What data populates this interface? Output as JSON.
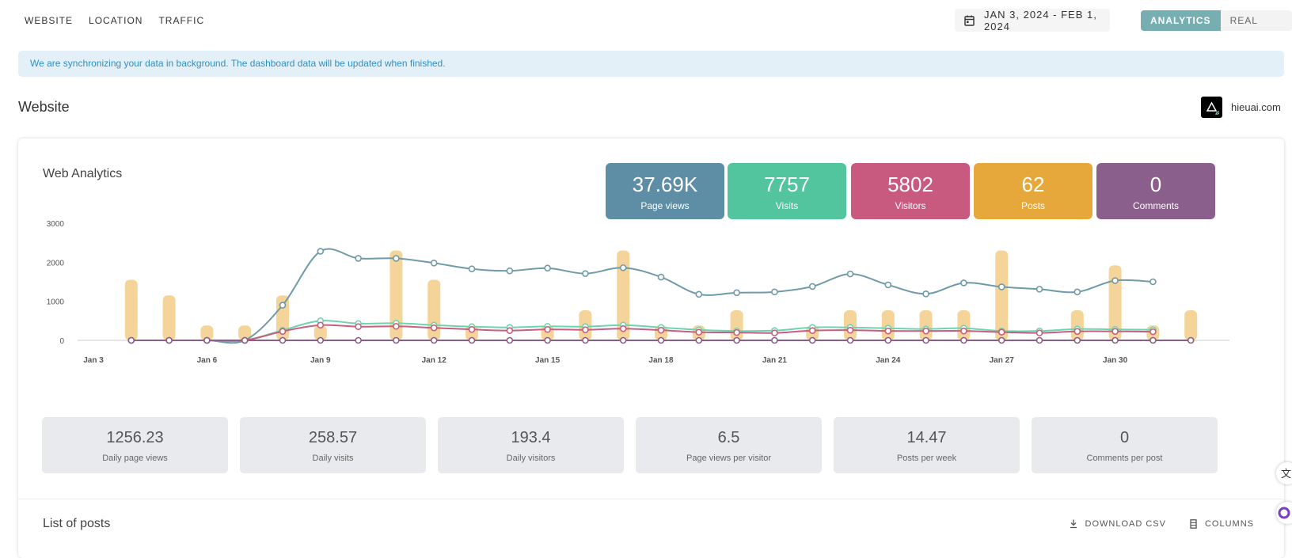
{
  "nav": {
    "tabs": [
      "WEBSITE",
      "LOCATION",
      "TRAFFIC"
    ]
  },
  "date_range": "JAN 3, 2024 - FEB 1, 2024",
  "modes": {
    "analytics": "ANALYTICS",
    "realtime": "REAL TIME"
  },
  "sync_banner": "We are synchronizing your data in background. The dashboard data will be updated when finished.",
  "section_title": "Website",
  "site": {
    "name": "hieuai.com"
  },
  "card_title": "Web Analytics",
  "kpis": [
    {
      "value": "37.69K",
      "label": "Page views",
      "color": "#5e8ea6"
    },
    {
      "value": "7757",
      "label": "Visits",
      "color": "#52c49e"
    },
    {
      "value": "5802",
      "label": "Visitors",
      "color": "#c95a7f"
    },
    {
      "value": "62",
      "label": "Posts",
      "color": "#e6a83a"
    },
    {
      "value": "0",
      "label": "Comments",
      "color": "#8a5f8b"
    }
  ],
  "stats": [
    {
      "value": "1256.23",
      "label": "Daily page views"
    },
    {
      "value": "258.57",
      "label": "Daily visits"
    },
    {
      "value": "193.4",
      "label": "Daily visitors"
    },
    {
      "value": "6.5",
      "label": "Page views per visitor"
    },
    {
      "value": "14.47",
      "label": "Posts per week"
    },
    {
      "value": "0",
      "label": "Comments per post"
    }
  ],
  "posts": {
    "title": "List of posts",
    "download": "DOWNLOAD CSV",
    "columns": "COLUMNS"
  },
  "chart_data": {
    "type": "bar",
    "x_tick_labels": [
      "Jan 3",
      "Jan 6",
      "Jan 9",
      "Jan 12",
      "Jan 15",
      "Jan 18",
      "Jan 21",
      "Jan 24",
      "Jan 27",
      "Jan 30"
    ],
    "y_ticks": [
      0,
      1000,
      2000,
      3000
    ],
    "ylim": [
      0,
      3000
    ],
    "grid": false,
    "x_start": 3,
    "bars": [
      {
        "x": 4,
        "value": 1550
      },
      {
        "x": 5,
        "value": 1150
      },
      {
        "x": 6,
        "value": 380
      },
      {
        "x": 7,
        "value": 380
      },
      {
        "x": 8,
        "value": 1150
      },
      {
        "x": 9,
        "value": 380
      },
      {
        "x": 11,
        "value": 2300
      },
      {
        "x": 12,
        "value": 1550
      },
      {
        "x": 13,
        "value": 380
      },
      {
        "x": 15,
        "value": 380
      },
      {
        "x": 16,
        "value": 770
      },
      {
        "x": 17,
        "value": 2300
      },
      {
        "x": 18,
        "value": 380
      },
      {
        "x": 19,
        "value": 380
      },
      {
        "x": 20,
        "value": 770
      },
      {
        "x": 22,
        "value": 380
      },
      {
        "x": 23,
        "value": 770
      },
      {
        "x": 24,
        "value": 770
      },
      {
        "x": 25,
        "value": 770
      },
      {
        "x": 26,
        "value": 770
      },
      {
        "x": 27,
        "value": 2300
      },
      {
        "x": 29,
        "value": 770
      },
      {
        "x": 30,
        "value": 1920
      },
      {
        "x": 31,
        "value": 380
      },
      {
        "x": 32,
        "value": 770
      }
    ],
    "bar_color": "#f5d49a",
    "series": [
      {
        "name": "Page views",
        "color": "#6f9aa8",
        "x": [
          4,
          5,
          6,
          7,
          8,
          9,
          10,
          11,
          12,
          13,
          14,
          15,
          16,
          17,
          18,
          19,
          20,
          21,
          22,
          23,
          24,
          25,
          26,
          27,
          28,
          29,
          30,
          31
        ],
        "values": [
          0,
          0,
          0,
          0,
          900,
          2280,
          2100,
          2100,
          1980,
          1830,
          1780,
          1850,
          1710,
          1860,
          1620,
          1180,
          1220,
          1240,
          1380,
          1700,
          1420,
          1190,
          1470,
          1370,
          1310,
          1240,
          1530,
          1500
        ]
      },
      {
        "name": "Visits",
        "color": "#6fd4ae",
        "x": [
          4,
          5,
          6,
          7,
          8,
          9,
          10,
          11,
          12,
          13,
          14,
          15,
          16,
          17,
          18,
          19,
          20,
          21,
          22,
          23,
          24,
          25,
          26,
          27,
          28,
          29,
          30,
          31
        ],
        "values": [
          0,
          0,
          0,
          0,
          260,
          500,
          430,
          440,
          390,
          350,
          330,
          360,
          350,
          390,
          330,
          270,
          240,
          250,
          330,
          330,
          310,
          290,
          310,
          240,
          240,
          290,
          280,
          270
        ]
      },
      {
        "name": "Visitors",
        "color": "#c6607f",
        "x": [
          4,
          5,
          6,
          7,
          8,
          9,
          10,
          11,
          12,
          13,
          14,
          15,
          16,
          17,
          18,
          19,
          20,
          21,
          22,
          23,
          24,
          25,
          26,
          27,
          28,
          29,
          30,
          31
        ],
        "values": [
          0,
          0,
          0,
          0,
          230,
          390,
          350,
          360,
          320,
          280,
          250,
          280,
          270,
          300,
          260,
          210,
          200,
          190,
          250,
          260,
          240,
          240,
          240,
          210,
          190,
          230,
          230,
          220
        ]
      },
      {
        "name": "Comments",
        "color": "#8a5f8b",
        "x": [
          4,
          5,
          6,
          7,
          8,
          9,
          10,
          11,
          12,
          13,
          14,
          15,
          16,
          17,
          18,
          19,
          20,
          21,
          22,
          23,
          24,
          25,
          26,
          27,
          28,
          29,
          30,
          31,
          32
        ],
        "values": [
          0,
          0,
          0,
          0,
          0,
          0,
          0,
          0,
          0,
          0,
          0,
          0,
          0,
          0,
          0,
          0,
          0,
          0,
          0,
          0,
          0,
          0,
          0,
          0,
          0,
          0,
          0,
          0,
          0
        ]
      }
    ]
  }
}
